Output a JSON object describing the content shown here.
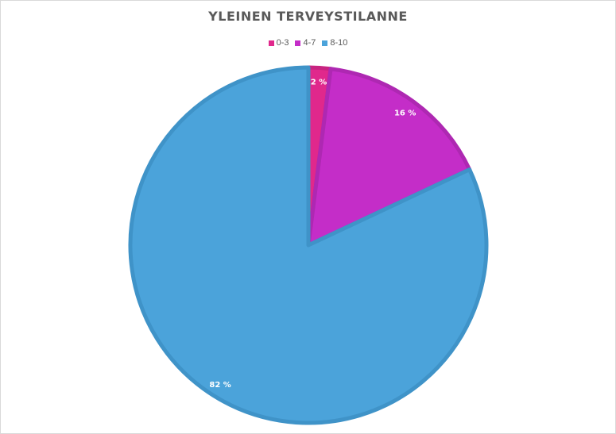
{
  "chart_data": {
    "type": "pie",
    "title": "YLEINEN TERVEYSTILANNE",
    "categories": [
      "0-3",
      "4-7",
      "8-10"
    ],
    "values": [
      2,
      16,
      82
    ],
    "data_labels": [
      "2 %",
      "16 %",
      "82 %"
    ],
    "colors": [
      "#E0288C",
      "#C42DC8",
      "#4BA3DA"
    ],
    "border_colors": [
      "#C82480",
      "#AE28B2",
      "#3F93C8"
    ],
    "legend_position": "top",
    "start_angle_deg": 0,
    "direction": "clockwise"
  }
}
